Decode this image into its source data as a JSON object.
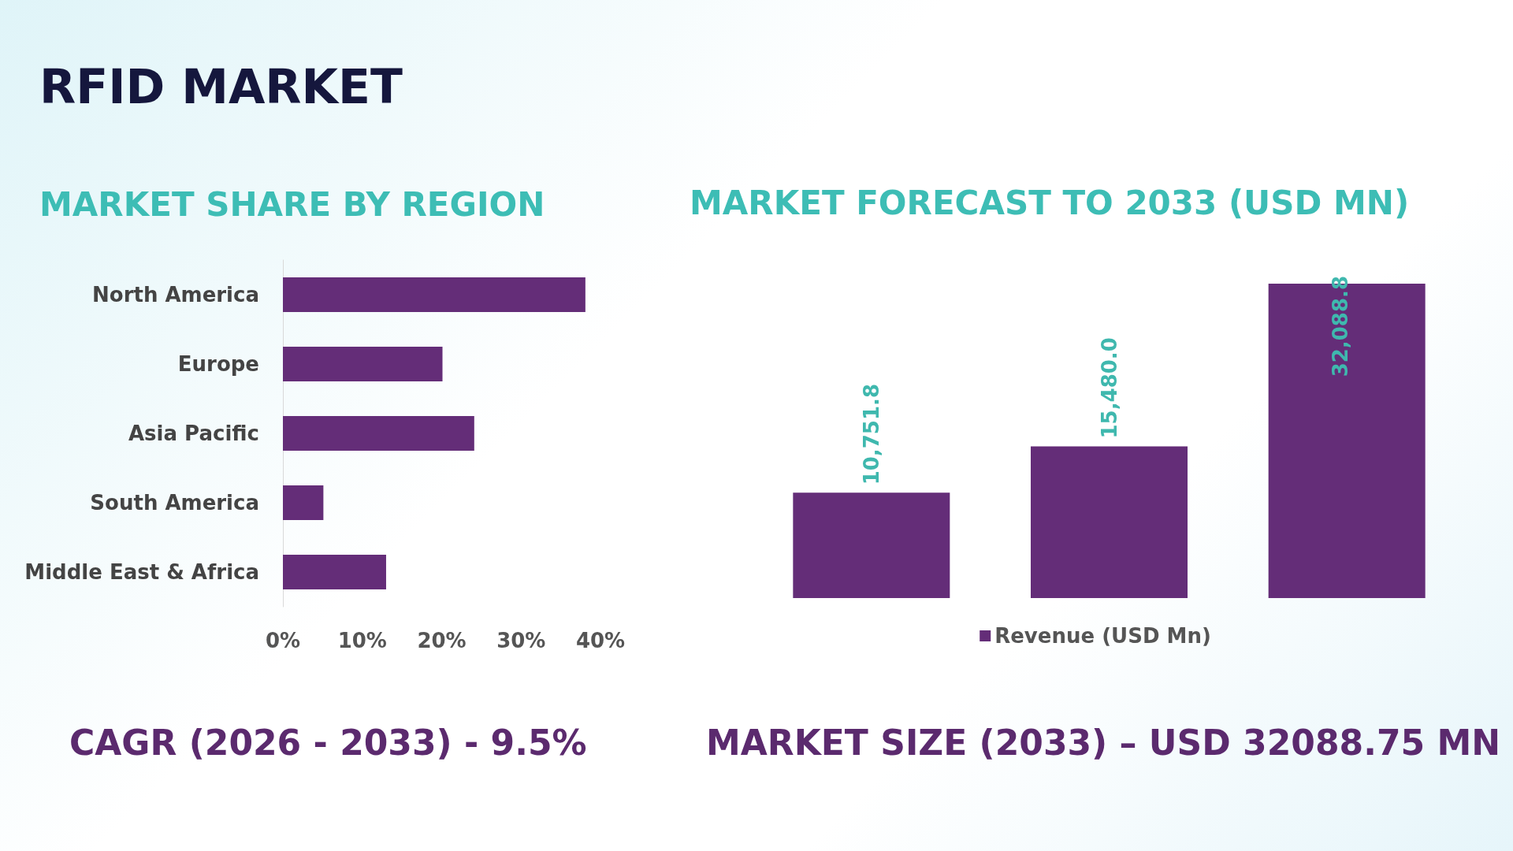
{
  "chart_data": [
    {
      "type": "bar",
      "title": "RFID MARKET",
      "subtitle": "MARKET SHARE BY REGION",
      "orientation": "horizontal",
      "categories": [
        "North America",
        "Europe",
        "Asia Pacific",
        "South America",
        "Middle East & Africa"
      ],
      "values": [
        38.1,
        20.1,
        24.1,
        5.1,
        13.0
      ],
      "color": "#642d78",
      "xlim": [
        0,
        40
      ],
      "xticks": [
        {
          "value": 0,
          "label": "0%"
        },
        {
          "value": 10,
          "label": "10%"
        },
        {
          "value": 20,
          "label": "20%"
        },
        {
          "value": 30,
          "label": "30%"
        },
        {
          "value": 40,
          "label": "40%"
        }
      ],
      "grid": false,
      "legend": false,
      "annotations": [
        "CAGR (2026 - 2033) - 9.5%"
      ]
    },
    {
      "type": "bar",
      "title": "MARKET FORECAST TO 2033 (USD MN)",
      "categories": [
        null,
        null,
        null
      ],
      "series": [
        {
          "name": "Revenue (USD Mn)",
          "color": "#642d78",
          "values": [
            10751.8,
            15480.0,
            32088.8
          ],
          "value_labels": [
            "10,751.8",
            "15,480.0",
            "32,088.8"
          ]
        }
      ],
      "grid": false,
      "legend": "bottom",
      "annotations": [
        "MARKET SIZE (2033) – USD 32088.75 MN"
      ]
    }
  ]
}
